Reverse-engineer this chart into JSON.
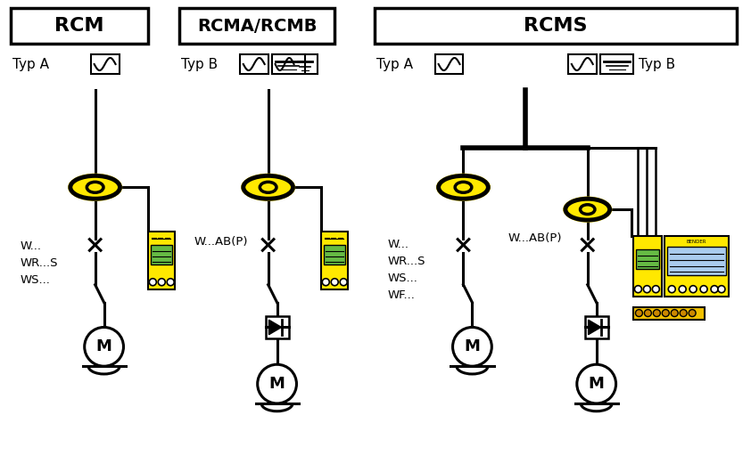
{
  "bg_color": "#ffffff",
  "yellow": "#FFE800",
  "yellow2": "#F0C000",
  "black": "#000000",
  "white": "#ffffff",
  "green_disp": "#66BB44",
  "blue_disp": "#AACCEE",
  "rcm_label": "RCM",
  "rcmab_label": "RCMA/RCMB",
  "rcms_label": "RCMS",
  "typ_a": "Typ A",
  "typ_b": "Typ B",
  "w_labels_rcm": "W...\nWR...S\nWS...",
  "w_labels_rcms_left": "W...\nWR...S\nWS...\nWF...",
  "wab_label": "W...AB(P)",
  "motor_label": "M",
  "lw_main": 2.2,
  "lw_bus": 4.0
}
